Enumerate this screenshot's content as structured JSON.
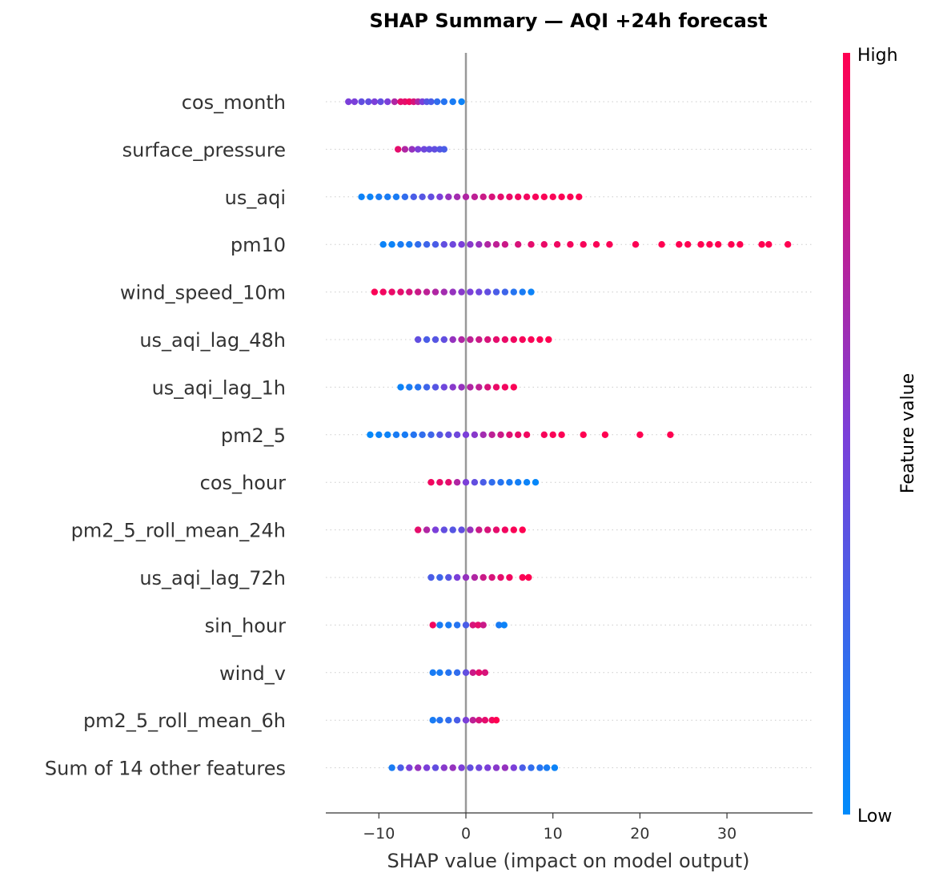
{
  "chart_data": {
    "type": "scatter",
    "title": "SHAP Summary — AQI +24h forecast",
    "xlabel": "SHAP value (impact on model output)",
    "ylabel": "",
    "xlim": [
      -16,
      40
    ],
    "xticks": [
      -10,
      0,
      10,
      20,
      30
    ],
    "xtick_labels": [
      "−10",
      "0",
      "10",
      "20",
      "30"
    ],
    "colorbar": {
      "label": "Feature value",
      "high_label": "High",
      "low_label": "Low",
      "low_color": "#008bfb",
      "high_color": "#ff0051"
    },
    "zero_line_color": "#999999",
    "features": [
      {
        "name": "cos_month",
        "points": [
          {
            "x": -13.5,
            "v": 0.5
          },
          {
            "x": -12.8,
            "v": 0.5
          },
          {
            "x": -12.0,
            "v": 0.4
          },
          {
            "x": -11.2,
            "v": 0.4
          },
          {
            "x": -10.5,
            "v": 0.5
          },
          {
            "x": -9.8,
            "v": 0.4
          },
          {
            "x": -9.0,
            "v": 0.5
          },
          {
            "x": -8.2,
            "v": 0.7
          },
          {
            "x": -7.5,
            "v": 0.9
          },
          {
            "x": -7.0,
            "v": 0.9
          },
          {
            "x": -6.5,
            "v": 0.95
          },
          {
            "x": -6.0,
            "v": 0.85
          },
          {
            "x": -5.5,
            "v": 0.7
          },
          {
            "x": -5.0,
            "v": 0.5
          },
          {
            "x": -4.5,
            "v": 0.35
          },
          {
            "x": -4.0,
            "v": 0.3
          },
          {
            "x": -3.3,
            "v": 0.2
          },
          {
            "x": -2.5,
            "v": 0.15
          },
          {
            "x": -1.5,
            "v": 0.1
          },
          {
            "x": -0.5,
            "v": 0.05
          }
        ]
      },
      {
        "name": "surface_pressure",
        "points": [
          {
            "x": -7.8,
            "v": 0.9
          },
          {
            "x": -7.0,
            "v": 0.7
          },
          {
            "x": -6.2,
            "v": 0.6
          },
          {
            "x": -5.5,
            "v": 0.5
          },
          {
            "x": -4.8,
            "v": 0.45
          },
          {
            "x": -4.2,
            "v": 0.4
          },
          {
            "x": -3.6,
            "v": 0.4
          },
          {
            "x": -3.0,
            "v": 0.35
          },
          {
            "x": -2.5,
            "v": 0.3
          }
        ]
      },
      {
        "name": "us_aqi",
        "points": [
          {
            "x": -12.0,
            "v": 0.05
          },
          {
            "x": -11.0,
            "v": 0.05
          },
          {
            "x": -10.0,
            "v": 0.1
          },
          {
            "x": -9.0,
            "v": 0.1
          },
          {
            "x": -8.0,
            "v": 0.1
          },
          {
            "x": -7.0,
            "v": 0.2
          },
          {
            "x": -6.0,
            "v": 0.3
          },
          {
            "x": -5.0,
            "v": 0.35
          },
          {
            "x": -4.0,
            "v": 0.4
          },
          {
            "x": -3.0,
            "v": 0.5
          },
          {
            "x": -2.0,
            "v": 0.6
          },
          {
            "x": -1.0,
            "v": 0.65
          },
          {
            "x": 0.0,
            "v": 0.7
          },
          {
            "x": 1.0,
            "v": 0.75
          },
          {
            "x": 2.0,
            "v": 0.8
          },
          {
            "x": 3.0,
            "v": 0.85
          },
          {
            "x": 4.0,
            "v": 0.9
          },
          {
            "x": 5.0,
            "v": 0.92
          },
          {
            "x": 6.0,
            "v": 0.95
          },
          {
            "x": 7.0,
            "v": 0.95
          },
          {
            "x": 8.0,
            "v": 0.97
          },
          {
            "x": 9.0,
            "v": 0.98
          },
          {
            "x": 10.0,
            "v": 0.98
          },
          {
            "x": 11.0,
            "v": 0.99
          },
          {
            "x": 12.0,
            "v": 0.99
          },
          {
            "x": 13.0,
            "v": 1.0
          }
        ]
      },
      {
        "name": "pm10",
        "points": [
          {
            "x": -9.5,
            "v": 0.05
          },
          {
            "x": -8.5,
            "v": 0.05
          },
          {
            "x": -7.5,
            "v": 0.1
          },
          {
            "x": -6.5,
            "v": 0.1
          },
          {
            "x": -5.5,
            "v": 0.2
          },
          {
            "x": -4.5,
            "v": 0.25
          },
          {
            "x": -3.5,
            "v": 0.3
          },
          {
            "x": -2.5,
            "v": 0.4
          },
          {
            "x": -1.5,
            "v": 0.45
          },
          {
            "x": -0.5,
            "v": 0.5
          },
          {
            "x": 0.5,
            "v": 0.55
          },
          {
            "x": 1.5,
            "v": 0.6
          },
          {
            "x": 2.5,
            "v": 0.7
          },
          {
            "x": 3.5,
            "v": 0.75
          },
          {
            "x": 4.5,
            "v": 0.8
          },
          {
            "x": 6.0,
            "v": 0.85
          },
          {
            "x": 7.5,
            "v": 0.9
          },
          {
            "x": 9.0,
            "v": 0.92
          },
          {
            "x": 10.5,
            "v": 0.94
          },
          {
            "x": 12.0,
            "v": 0.96
          },
          {
            "x": 13.5,
            "v": 0.97
          },
          {
            "x": 15.0,
            "v": 0.98
          },
          {
            "x": 16.5,
            "v": 0.98
          },
          {
            "x": 19.5,
            "v": 0.99
          },
          {
            "x": 22.5,
            "v": 1.0
          },
          {
            "x": 24.5,
            "v": 1.0
          },
          {
            "x": 25.5,
            "v": 1.0
          },
          {
            "x": 27.0,
            "v": 1.0
          },
          {
            "x": 28.0,
            "v": 1.0
          },
          {
            "x": 29.0,
            "v": 1.0
          },
          {
            "x": 30.5,
            "v": 1.0
          },
          {
            "x": 31.5,
            "v": 1.0
          },
          {
            "x": 34.0,
            "v": 1.0
          },
          {
            "x": 34.8,
            "v": 1.0
          },
          {
            "x": 37.0,
            "v": 1.0
          }
        ]
      },
      {
        "name": "wind_speed_10m",
        "points": [
          {
            "x": -10.5,
            "v": 0.98
          },
          {
            "x": -9.5,
            "v": 0.95
          },
          {
            "x": -8.5,
            "v": 0.92
          },
          {
            "x": -7.5,
            "v": 0.9
          },
          {
            "x": -6.5,
            "v": 0.85
          },
          {
            "x": -5.5,
            "v": 0.8
          },
          {
            "x": -4.5,
            "v": 0.75
          },
          {
            "x": -3.5,
            "v": 0.7
          },
          {
            "x": -2.5,
            "v": 0.65
          },
          {
            "x": -1.5,
            "v": 0.6
          },
          {
            "x": -0.5,
            "v": 0.55
          },
          {
            "x": 0.5,
            "v": 0.5
          },
          {
            "x": 1.5,
            "v": 0.45
          },
          {
            "x": 2.5,
            "v": 0.4
          },
          {
            "x": 3.5,
            "v": 0.3
          },
          {
            "x": 4.5,
            "v": 0.25
          },
          {
            "x": 5.5,
            "v": 0.15
          },
          {
            "x": 6.5,
            "v": 0.1
          },
          {
            "x": 7.5,
            "v": 0.05
          }
        ]
      },
      {
        "name": "us_aqi_lag_48h",
        "points": [
          {
            "x": -5.5,
            "v": 0.4
          },
          {
            "x": -4.5,
            "v": 0.3
          },
          {
            "x": -3.5,
            "v": 0.35
          },
          {
            "x": -2.5,
            "v": 0.4
          },
          {
            "x": -1.5,
            "v": 0.6
          },
          {
            "x": -0.5,
            "v": 0.7
          },
          {
            "x": 0.5,
            "v": 0.75
          },
          {
            "x": 1.5,
            "v": 0.8
          },
          {
            "x": 2.5,
            "v": 0.85
          },
          {
            "x": 3.5,
            "v": 0.9
          },
          {
            "x": 4.5,
            "v": 0.92
          },
          {
            "x": 5.5,
            "v": 0.95
          },
          {
            "x": 6.5,
            "v": 0.97
          },
          {
            "x": 7.5,
            "v": 0.98
          },
          {
            "x": 8.5,
            "v": 0.99
          },
          {
            "x": 9.5,
            "v": 1.0
          }
        ]
      },
      {
        "name": "us_aqi_lag_1h",
        "points": [
          {
            "x": -7.5,
            "v": 0.05
          },
          {
            "x": -6.5,
            "v": 0.1
          },
          {
            "x": -5.5,
            "v": 0.15
          },
          {
            "x": -4.5,
            "v": 0.25
          },
          {
            "x": -3.5,
            "v": 0.35
          },
          {
            "x": -2.5,
            "v": 0.45
          },
          {
            "x": -1.5,
            "v": 0.55
          },
          {
            "x": -0.5,
            "v": 0.6
          },
          {
            "x": 0.5,
            "v": 0.7
          },
          {
            "x": 1.5,
            "v": 0.75
          },
          {
            "x": 2.5,
            "v": 0.85
          },
          {
            "x": 3.5,
            "v": 0.92
          },
          {
            "x": 4.5,
            "v": 0.95
          },
          {
            "x": 5.5,
            "v": 0.98
          }
        ]
      },
      {
        "name": "pm2_5",
        "points": [
          {
            "x": -11.0,
            "v": 0.02
          },
          {
            "x": -10.0,
            "v": 0.05
          },
          {
            "x": -9.0,
            "v": 0.05
          },
          {
            "x": -8.0,
            "v": 0.1
          },
          {
            "x": -7.0,
            "v": 0.1
          },
          {
            "x": -6.0,
            "v": 0.15
          },
          {
            "x": -5.0,
            "v": 0.2
          },
          {
            "x": -4.0,
            "v": 0.25
          },
          {
            "x": -3.0,
            "v": 0.35
          },
          {
            "x": -2.0,
            "v": 0.4
          },
          {
            "x": -1.0,
            "v": 0.45
          },
          {
            "x": 0.0,
            "v": 0.5
          },
          {
            "x": 1.0,
            "v": 0.55
          },
          {
            "x": 2.0,
            "v": 0.65
          },
          {
            "x": 3.0,
            "v": 0.75
          },
          {
            "x": 4.0,
            "v": 0.8
          },
          {
            "x": 5.0,
            "v": 0.88
          },
          {
            "x": 6.0,
            "v": 0.92
          },
          {
            "x": 7.0,
            "v": 0.95
          },
          {
            "x": 9.0,
            "v": 0.97
          },
          {
            "x": 10.0,
            "v": 0.98
          },
          {
            "x": 11.0,
            "v": 0.99
          },
          {
            "x": 13.5,
            "v": 1.0
          },
          {
            "x": 16.0,
            "v": 1.0
          },
          {
            "x": 20.0,
            "v": 1.0
          },
          {
            "x": 23.5,
            "v": 1.0
          }
        ]
      },
      {
        "name": "cos_hour",
        "points": [
          {
            "x": -4.0,
            "v": 0.95
          },
          {
            "x": -3.0,
            "v": 0.92
          },
          {
            "x": -2.0,
            "v": 0.9
          },
          {
            "x": -1.0,
            "v": 0.7
          },
          {
            "x": 0.0,
            "v": 0.5
          },
          {
            "x": 1.0,
            "v": 0.4
          },
          {
            "x": 2.0,
            "v": 0.3
          },
          {
            "x": 3.0,
            "v": 0.2
          },
          {
            "x": 4.0,
            "v": 0.15
          },
          {
            "x": 5.0,
            "v": 0.1
          },
          {
            "x": 6.0,
            "v": 0.08
          },
          {
            "x": 7.0,
            "v": 0.05
          },
          {
            "x": 8.0,
            "v": 0.02
          }
        ]
      },
      {
        "name": "pm2_5_roll_mean_24h",
        "points": [
          {
            "x": -5.5,
            "v": 0.9
          },
          {
            "x": -4.5,
            "v": 0.7
          },
          {
            "x": -3.5,
            "v": 0.5
          },
          {
            "x": -2.5,
            "v": 0.4
          },
          {
            "x": -1.5,
            "v": 0.35
          },
          {
            "x": -0.5,
            "v": 0.4
          },
          {
            "x": 0.5,
            "v": 0.6
          },
          {
            "x": 1.5,
            "v": 0.8
          },
          {
            "x": 2.5,
            "v": 0.85
          },
          {
            "x": 3.5,
            "v": 0.9
          },
          {
            "x": 4.5,
            "v": 0.95
          },
          {
            "x": 5.5,
            "v": 0.98
          },
          {
            "x": 6.5,
            "v": 1.0
          }
        ]
      },
      {
        "name": "us_aqi_lag_72h",
        "points": [
          {
            "x": -4.0,
            "v": 0.3
          },
          {
            "x": -3.0,
            "v": 0.25
          },
          {
            "x": -2.0,
            "v": 0.35
          },
          {
            "x": -1.0,
            "v": 0.5
          },
          {
            "x": 0.0,
            "v": 0.6
          },
          {
            "x": 1.0,
            "v": 0.7
          },
          {
            "x": 2.0,
            "v": 0.8
          },
          {
            "x": 3.0,
            "v": 0.85
          },
          {
            "x": 4.0,
            "v": 0.9
          },
          {
            "x": 5.0,
            "v": 0.95
          },
          {
            "x": 6.5,
            "v": 0.98
          },
          {
            "x": 7.2,
            "v": 1.0
          }
        ]
      },
      {
        "name": "sin_hour",
        "points": [
          {
            "x": -3.8,
            "v": 0.95
          },
          {
            "x": -3.0,
            "v": 0.1
          },
          {
            "x": -2.0,
            "v": 0.1
          },
          {
            "x": -1.0,
            "v": 0.15
          },
          {
            "x": 0.0,
            "v": 0.3
          },
          {
            "x": 0.8,
            "v": 0.85
          },
          {
            "x": 1.4,
            "v": 0.9
          },
          {
            "x": 2.0,
            "v": 0.8
          },
          {
            "x": 3.8,
            "v": 0.1
          },
          {
            "x": 4.4,
            "v": 0.05
          }
        ]
      },
      {
        "name": "wind_v",
        "points": [
          {
            "x": -3.8,
            "v": 0.1
          },
          {
            "x": -3.0,
            "v": 0.1
          },
          {
            "x": -2.0,
            "v": 0.15
          },
          {
            "x": -1.0,
            "v": 0.2
          },
          {
            "x": 0.0,
            "v": 0.4
          },
          {
            "x": 0.8,
            "v": 0.8
          },
          {
            "x": 1.5,
            "v": 0.9
          },
          {
            "x": 2.2,
            "v": 0.85
          }
        ]
      },
      {
        "name": "pm2_5_roll_mean_6h",
        "points": [
          {
            "x": -3.8,
            "v": 0.1
          },
          {
            "x": -3.0,
            "v": 0.15
          },
          {
            "x": -2.0,
            "v": 0.2
          },
          {
            "x": -1.0,
            "v": 0.3
          },
          {
            "x": 0.0,
            "v": 0.5
          },
          {
            "x": 0.8,
            "v": 0.75
          },
          {
            "x": 1.5,
            "v": 0.85
          },
          {
            "x": 2.2,
            "v": 0.9
          },
          {
            "x": 3.0,
            "v": 0.95
          },
          {
            "x": 3.5,
            "v": 1.0
          }
        ]
      },
      {
        "name": "Sum of 14 other features",
        "points": [
          {
            "x": -8.5,
            "v": 0.1
          },
          {
            "x": -7.5,
            "v": 0.3
          },
          {
            "x": -6.5,
            "v": 0.5
          },
          {
            "x": -5.5,
            "v": 0.6
          },
          {
            "x": -4.5,
            "v": 0.5
          },
          {
            "x": -3.5,
            "v": 0.4
          },
          {
            "x": -2.5,
            "v": 0.55
          },
          {
            "x": -1.5,
            "v": 0.6
          },
          {
            "x": -0.5,
            "v": 0.5
          },
          {
            "x": 0.5,
            "v": 0.4
          },
          {
            "x": 1.5,
            "v": 0.45
          },
          {
            "x": 2.5,
            "v": 0.5
          },
          {
            "x": 3.5,
            "v": 0.55
          },
          {
            "x": 4.5,
            "v": 0.6
          },
          {
            "x": 5.5,
            "v": 0.5
          },
          {
            "x": 6.5,
            "v": 0.3
          },
          {
            "x": 7.5,
            "v": 0.2
          },
          {
            "x": 8.5,
            "v": 0.15
          },
          {
            "x": 9.3,
            "v": 0.1
          },
          {
            "x": 10.2,
            "v": 0.05
          }
        ]
      }
    ]
  }
}
